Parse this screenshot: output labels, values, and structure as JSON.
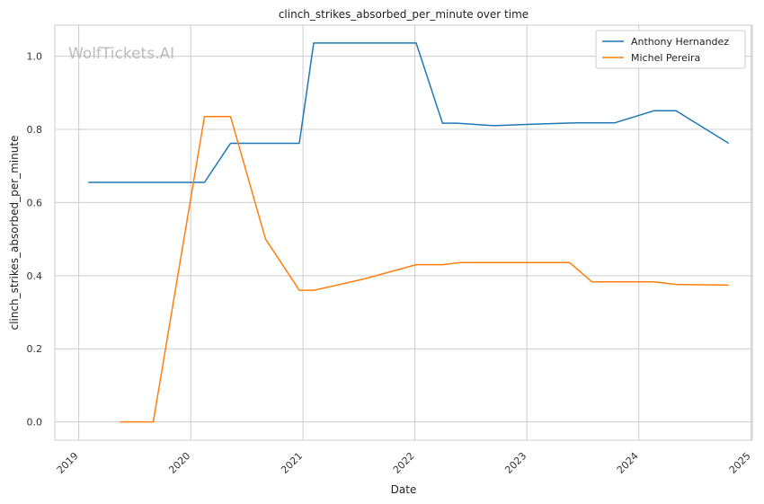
{
  "chart_data": {
    "type": "line",
    "title": "clinch_strikes_absorbed_per_minute over time",
    "xlabel": "Date",
    "ylabel": "clinch_strikes_absorbed_per_minute",
    "x_ticks": [
      "2019",
      "2020",
      "2021",
      "2022",
      "2023",
      "2024",
      "2025"
    ],
    "y_ticks": [
      "0.0",
      "0.2",
      "0.4",
      "0.6",
      "0.8",
      "1.0"
    ],
    "xlim": [
      "2018-10-15",
      "2025-01-05"
    ],
    "ylim": [
      -0.05,
      1.085
    ],
    "grid": true,
    "legend_position": "top-right",
    "watermark": "WolfTickets.AI",
    "series": [
      {
        "name": "Anthony Hernandez",
        "color": "#1f77b4",
        "points": [
          [
            "2019-02-01",
            0.655
          ],
          [
            "2020-02-15",
            0.655
          ],
          [
            "2020-05-10",
            0.762
          ],
          [
            "2020-12-20",
            0.762
          ],
          [
            "2021-02-05",
            1.036
          ],
          [
            "2022-01-05",
            1.036
          ],
          [
            "2022-04-01",
            0.817
          ],
          [
            "2022-05-15",
            0.817
          ],
          [
            "2022-09-15",
            0.81
          ],
          [
            "2023-01-20",
            0.814
          ],
          [
            "2023-06-15",
            0.818
          ],
          [
            "2023-10-15",
            0.818
          ],
          [
            "2024-02-20",
            0.851
          ],
          [
            "2024-05-01",
            0.851
          ],
          [
            "2024-10-20",
            0.762
          ]
        ]
      },
      {
        "name": "Michel Pereira",
        "color": "#ff7f0e",
        "points": [
          [
            "2019-05-15",
            0.0
          ],
          [
            "2019-09-01",
            0.0
          ],
          [
            "2020-02-15",
            0.835
          ],
          [
            "2020-05-10",
            0.835
          ],
          [
            "2020-09-01",
            0.5
          ],
          [
            "2020-12-20",
            0.36
          ],
          [
            "2021-02-05",
            0.36
          ],
          [
            "2021-07-15",
            0.39
          ],
          [
            "2022-01-05",
            0.43
          ],
          [
            "2022-04-01",
            0.43
          ],
          [
            "2022-06-01",
            0.436
          ],
          [
            "2023-05-20",
            0.436
          ],
          [
            "2023-08-01",
            0.383
          ],
          [
            "2024-02-20",
            0.383
          ],
          [
            "2024-05-01",
            0.376
          ],
          [
            "2024-10-20",
            0.374
          ]
        ]
      }
    ]
  }
}
